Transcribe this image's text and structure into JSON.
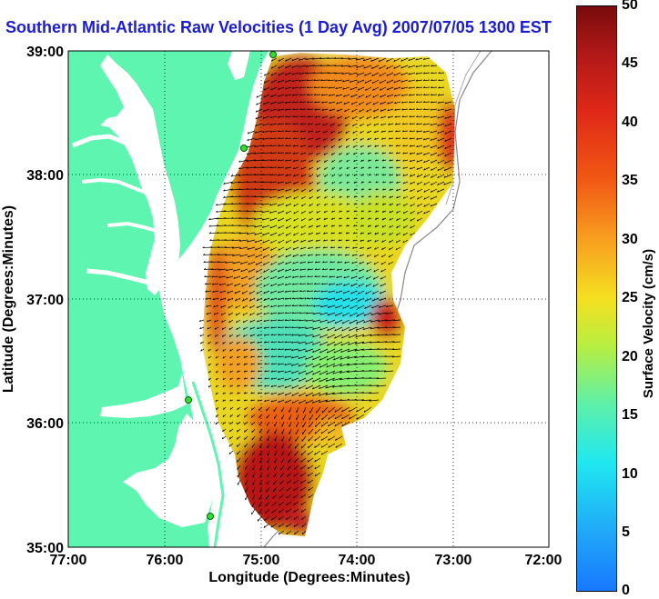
{
  "title": "Southern Mid-Atlantic Raw Velocities (1 Day Avg) 2007/07/05 1300 EST",
  "x_axis": {
    "label": "Longitude (Degrees:Minutes)",
    "ticks": [
      "77:00",
      "76:00",
      "75:00",
      "74:00",
      "73:00",
      "72:00"
    ]
  },
  "y_axis": {
    "label": "Latitude (Degrees:Minutes)",
    "ticks": [
      "39:00",
      "38:00",
      "37:00",
      "36:00",
      "35:00"
    ]
  },
  "colorbar": {
    "label": "Surface Velocity (cm/s)",
    "ticks": [
      "50",
      "45",
      "40",
      "35",
      "30",
      "25",
      "20",
      "15",
      "10",
      "5",
      "0"
    ],
    "range": [
      0,
      50
    ]
  },
  "colors": {
    "land": "#5ef5b0",
    "water": "#ffffff",
    "title": "#1c1cd0",
    "stations": "#33dd33"
  }
}
